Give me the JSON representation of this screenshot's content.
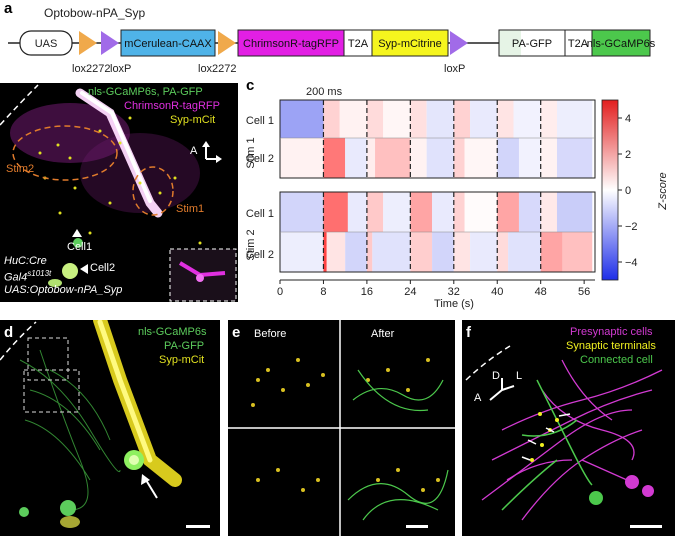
{
  "panel_a": {
    "label": "a",
    "construct_title": "Optobow-nPA_Syp",
    "boxes": [
      "UAS",
      "mCerulean-CAAX",
      "ChrimsonR-tagRFP",
      "T2A",
      "Syp-mCitrine",
      "PA-GFP",
      "T2A",
      "nls-GCaMP6s"
    ],
    "site_labels": [
      "lox2272",
      "loxP",
      "lox2272",
      "loxP"
    ],
    "colors": {
      "uas": "#ffffff",
      "cerulean": "#4fb3e8",
      "chrimson": "#e21fe4",
      "t2a": "#ffffff",
      "citrine": "#f5f51e",
      "pagfp": "#ffffff",
      "gcamp": "#4cc84c",
      "lox2272": "#f0a94b",
      "loxp": "#a16be8"
    }
  },
  "panel_b": {
    "label": "b",
    "legend_lines": [
      "nls-GCaMP6s, PA-GFP",
      "ChrimsonR-tagRFP",
      "Syp-mCit"
    ],
    "stim_labels": [
      "Stim2",
      "Stim1"
    ],
    "cell_labels": [
      "Cell1",
      "Cell2"
    ],
    "axis_label": "A",
    "genotype_lines": [
      "HuC:Cre",
      "Gal4s1013t",
      "UAS:Optobow-nPA_Syp"
    ],
    "genotype_superscript": "s1013t",
    "genotype_base": "Gal4"
  },
  "panel_c": {
    "label": "c",
    "duration_label": "200 ms",
    "stim_labels": [
      "Stim 1",
      "Stim 2"
    ],
    "row_labels": [
      "Cell 1",
      "Cell 2"
    ],
    "xlabel": "Time (s)",
    "x_ticks": [
      "0",
      "8",
      "16",
      "24",
      "32",
      "40",
      "48",
      "56"
    ],
    "colorbar_label": "Z-score",
    "colorbar_ticks": [
      "4",
      "2",
      "0",
      "−2",
      "−4"
    ]
  },
  "chart_data": {
    "type": "heatmap",
    "xlabel": "Time (s)",
    "xlim": [
      0,
      58
    ],
    "stim_times": [
      8,
      16,
      24,
      32,
      40,
      48
    ],
    "x_ticks": [
      0,
      8,
      16,
      24,
      32,
      40,
      48,
      56
    ],
    "zlabel": "Z-score",
    "zlim": [
      -5,
      5
    ],
    "colormap": "blue-white-red",
    "groups": [
      {
        "name": "Stim 1",
        "rows": [
          {
            "name": "Cell 1",
            "segments": [
              [
                0,
                8,
                -2.2
              ],
              [
                8,
                11,
                1.0
              ],
              [
                11,
                16,
                0.3
              ],
              [
                16,
                19,
                0.8
              ],
              [
                19,
                24,
                0.2
              ],
              [
                24,
                27,
                0.7
              ],
              [
                27,
                32,
                -0.6
              ],
              [
                32,
                35,
                1.0
              ],
              [
                35,
                40,
                -0.5
              ],
              [
                40,
                43,
                0.6
              ],
              [
                43,
                48,
                -0.3
              ],
              [
                48,
                51,
                0.4
              ],
              [
                51,
                57.5,
                -0.4
              ]
            ]
          },
          {
            "name": "Cell 2",
            "segments": [
              [
                0,
                8,
                0.3
              ],
              [
                8,
                12,
                3.0
              ],
              [
                12,
                16,
                -0.5
              ],
              [
                16,
                17.5,
                0.4
              ],
              [
                17.5,
                24,
                1.4
              ],
              [
                24,
                27,
                0.3
              ],
              [
                27,
                32,
                -0.7
              ],
              [
                32,
                34,
                1.0
              ],
              [
                34,
                40,
                0.2
              ],
              [
                40,
                44,
                -1.0
              ],
              [
                44,
                48,
                -0.3
              ],
              [
                48,
                51,
                0.3
              ],
              [
                51,
                57.5,
                -0.9
              ]
            ]
          }
        ]
      },
      {
        "name": "Stim 2",
        "rows": [
          {
            "name": "Cell 1",
            "segments": [
              [
                0,
                8,
                -1.0
              ],
              [
                8,
                12.5,
                3.2
              ],
              [
                12.5,
                16,
                -0.5
              ],
              [
                16,
                19,
                1.2
              ],
              [
                19,
                24,
                -0.4
              ],
              [
                24,
                28,
                2.0
              ],
              [
                28,
                32,
                -0.5
              ],
              [
                32,
                34,
                1.0
              ],
              [
                34,
                40,
                0.1
              ],
              [
                40,
                44,
                2.0
              ],
              [
                44,
                48,
                -0.9
              ],
              [
                48,
                51,
                0.5
              ],
              [
                51,
                57.5,
                -1.2
              ]
            ]
          },
          {
            "name": "Cell 2",
            "segments": [
              [
                0,
                8,
                -0.4
              ],
              [
                8,
                8.6,
                4.2
              ],
              [
                8.6,
                12,
                0.6
              ],
              [
                12,
                16,
                -1.0
              ],
              [
                16,
                17,
                1.2
              ],
              [
                17,
                24,
                -0.7
              ],
              [
                24,
                28,
                1.1
              ],
              [
                28,
                32,
                -1.0
              ],
              [
                32,
                35,
                0.6
              ],
              [
                35,
                40,
                -0.5
              ],
              [
                40,
                42,
                0.8
              ],
              [
                42,
                48,
                -0.7
              ],
              [
                48,
                52,
                2.0
              ],
              [
                52,
                57.5,
                1.4
              ]
            ]
          }
        ]
      }
    ]
  },
  "panel_d": {
    "label": "d",
    "legend_lines": [
      "nls-GCaMP6s",
      "PA-GFP",
      "Syp-mCit"
    ]
  },
  "panel_e": {
    "label": "e",
    "before_label": "Before",
    "after_label": "After"
  },
  "panel_f": {
    "label": "f",
    "legend_lines": [
      "Presynaptic cells",
      "Synaptic terminals",
      "Connected cell"
    ],
    "axis_labels": [
      "D",
      "L",
      "A"
    ]
  }
}
